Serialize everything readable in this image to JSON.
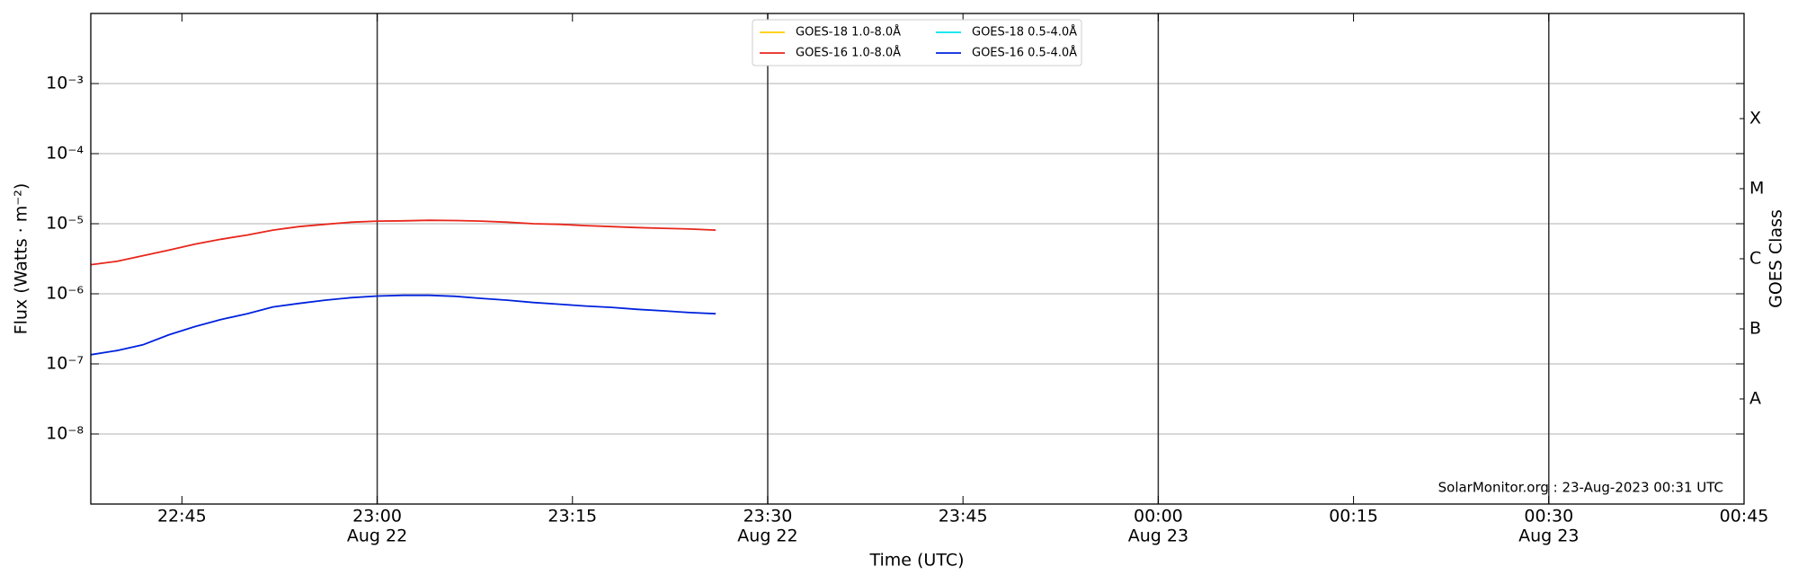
{
  "chart_data": {
    "type": "line",
    "y_label": "Flux (Watts · m⁻²)",
    "x_label": "Time (UTC)",
    "y2_label": "GOES Class",
    "annotation": "SolarMonitor.org : 23-Aug-2023 00:31 UTC",
    "log_y": true,
    "grid": true,
    "legend": "upper center",
    "x": [
      "Aug 22 22:38",
      "Aug 22 22:40",
      "Aug 22 22:42",
      "Aug 22 22:44",
      "Aug 22 22:46",
      "Aug 22 22:48",
      "Aug 22 22:50",
      "Aug 22 22:52",
      "Aug 22 22:54",
      "Aug 22 22:56",
      "Aug 22 22:58",
      "Aug 22 23:00",
      "Aug 22 23:02",
      "Aug 22 23:04",
      "Aug 22 23:06",
      "Aug 22 23:08",
      "Aug 22 23:10",
      "Aug 22 23:12",
      "Aug 22 23:14",
      "Aug 22 23:16",
      "Aug 22 23:18",
      "Aug 22 23:20",
      "Aug 22 23:22",
      "Aug 22 23:24",
      "Aug 22 23:26"
    ],
    "series": [
      {
        "name": "GOES-18 1.0-8.0Å",
        "color": "#ffcc00",
        "values": [
          null,
          null,
          null,
          null,
          null,
          null,
          null,
          null,
          null,
          null,
          null,
          null,
          null,
          null,
          null,
          null,
          null,
          null,
          null,
          null,
          null,
          null,
          null,
          null,
          null
        ]
      },
      {
        "name": "GOES-16 1.0-8.0Å",
        "color": "#e8261b",
        "values": [
          2.6e-06,
          2.9e-06,
          3.5e-06,
          4.2e-06,
          5.1e-06,
          6e-06,
          6.9e-06,
          8.1e-06,
          9.1e-06,
          9.8e-06,
          1.05e-05,
          1.09e-05,
          1.1e-05,
          1.12e-05,
          1.11e-05,
          1.09e-05,
          1.05e-05,
          1e-05,
          9.8e-06,
          9.4e-06,
          9.1e-06,
          8.8e-06,
          8.6e-06,
          8.4e-06,
          8.1e-06
        ]
      },
      {
        "name": "GOES-18 0.5-4.0Å",
        "color": "#00e5ee",
        "values": [
          null,
          null,
          null,
          null,
          null,
          null,
          null,
          null,
          null,
          null,
          null,
          null,
          null,
          null,
          null,
          null,
          null,
          null,
          null,
          null,
          null,
          null,
          null,
          null,
          null
        ]
      },
      {
        "name": "GOES-16 0.5-4.0Å",
        "color": "#0022dd",
        "values": [
          1.35e-07,
          1.55e-07,
          1.87e-07,
          2.6e-07,
          3.4e-07,
          4.3e-07,
          5.2e-07,
          6.5e-07,
          7.3e-07,
          8.1e-07,
          8.8e-07,
          9.3e-07,
          9.5e-07,
          9.5e-07,
          9.2e-07,
          8.6e-07,
          8.1e-07,
          7.5e-07,
          7.1e-07,
          6.7e-07,
          6.4e-07,
          6e-07,
          5.7e-07,
          5.4e-07,
          5.2e-07
        ]
      }
    ],
    "xlim": [
      "Aug 22 22:38",
      "Aug 23 00:45"
    ],
    "xticks": [
      {
        "value": "Aug 22 22:45",
        "label": "22:45"
      },
      {
        "value": "Aug 22 23:00",
        "label": "23:00",
        "sublabel": "Aug 22"
      },
      {
        "value": "Aug 22 23:15",
        "label": "23:15"
      },
      {
        "value": "Aug 22 23:30",
        "label": "23:30",
        "sublabel": "Aug 22"
      },
      {
        "value": "Aug 22 23:45",
        "label": "23:45"
      },
      {
        "value": "Aug 23 00:00",
        "label": "00:00",
        "sublabel": "Aug 23"
      },
      {
        "value": "Aug 23 00:15",
        "label": "00:15"
      },
      {
        "value": "Aug 23 00:30",
        "label": "00:30",
        "sublabel": "Aug 23"
      },
      {
        "value": "Aug 23 00:45",
        "label": "00:45"
      }
    ],
    "ylim": [
      1e-09,
      0.01
    ],
    "yticks": [
      {
        "value": 1e-08,
        "label": "10⁻⁸"
      },
      {
        "value": 1e-07,
        "label": "10⁻⁷"
      },
      {
        "value": 1e-06,
        "label": "10⁻⁶"
      },
      {
        "value": 1e-05,
        "label": "10⁻⁵"
      },
      {
        "value": 0.0001,
        "label": "10⁻⁴"
      },
      {
        "value": 0.001,
        "label": "10⁻³"
      }
    ],
    "y2lim": [
      1e-09,
      0.01
    ],
    "y2ticks": [
      {
        "value": 3.162e-08,
        "label": "A"
      },
      {
        "value": 3.162e-07,
        "label": "B"
      },
      {
        "value": 3.162e-06,
        "label": "C"
      },
      {
        "value": 3.162e-05,
        "label": "M"
      },
      {
        "value": 0.0003162,
        "label": "X"
      }
    ]
  }
}
